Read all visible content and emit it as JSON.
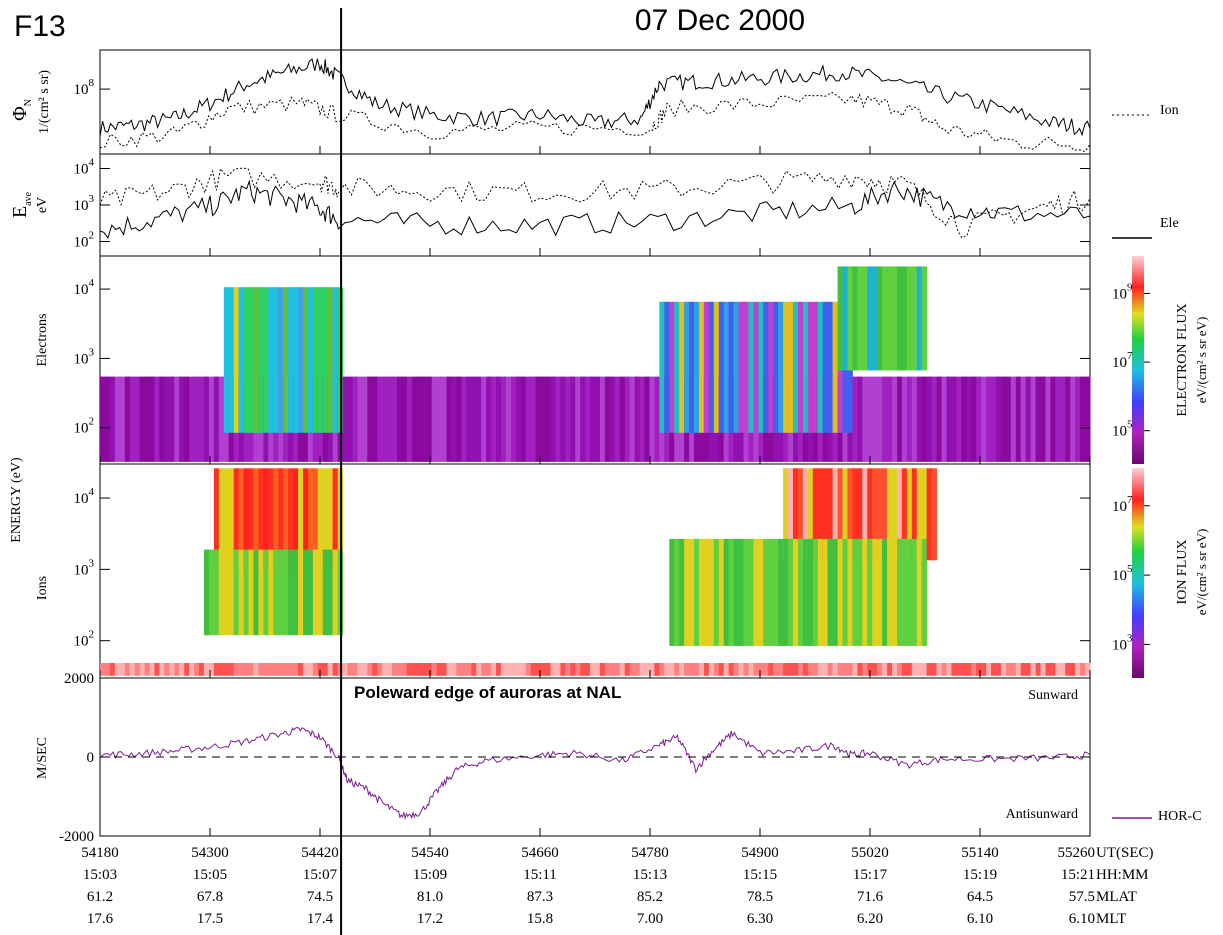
{
  "header": {
    "satellite": "F13",
    "date": "07 Dec 2000"
  },
  "legend": {
    "ion": "Ion",
    "ele": "Ele",
    "hor": "HOR-C"
  },
  "colors": {
    "velocity": "#7a1f8f",
    "line": "#000000"
  },
  "chart_data": [
    {
      "type": "line",
      "panel": "number-flux",
      "ylabel_symbol": "Φ",
      "ylabel_sub": "N",
      "ylabel_units": "1/(cm² s sr)",
      "yticks": [
        {
          "label": "10",
          "exp": "8",
          "value": 100000000
        }
      ],
      "y_scale": "log",
      "ylim": [
        10000000,
        400000000
      ],
      "series": [
        {
          "name": "Ele",
          "style": "solid",
          "points": [
            [
              54180,
              25000000.0
            ],
            [
              54220,
              28000000.0
            ],
            [
              54260,
              35000000.0
            ],
            [
              54300,
              60000000.0
            ],
            [
              54340,
              120000000.0
            ],
            [
              54380,
              180000000.0
            ],
            [
              54420,
              250000000.0
            ],
            [
              54440,
              150000000.0
            ],
            [
              54480,
              60000000.0
            ],
            [
              54540,
              40000000.0
            ],
            [
              54600,
              35000000.0
            ],
            [
              54660,
              40000000.0
            ],
            [
              54720,
              30000000.0
            ],
            [
              54770,
              35000000.0
            ],
            [
              54790,
              120000000.0
            ],
            [
              54830,
              130000000.0
            ],
            [
              54880,
              140000000.0
            ],
            [
              54940,
              160000000.0
            ],
            [
              54990,
              180000000.0
            ],
            [
              55040,
              140000000.0
            ],
            [
              55100,
              80000000.0
            ],
            [
              55160,
              50000000.0
            ],
            [
              55220,
              30000000.0
            ],
            [
              55260,
              25000000.0
            ]
          ]
        },
        {
          "name": "Ion",
          "style": "dotted",
          "points": [
            [
              54180,
              15000000.0
            ],
            [
              54260,
              20000000.0
            ],
            [
              54320,
              50000000.0
            ],
            [
              54400,
              60000000.0
            ],
            [
              54440,
              40000000.0
            ],
            [
              54540,
              22000000.0
            ],
            [
              54660,
              25000000.0
            ],
            [
              54780,
              25000000.0
            ],
            [
              54800,
              50000000.0
            ],
            [
              54900,
              60000000.0
            ],
            [
              55000,
              70000000.0
            ],
            [
              55060,
              50000000.0
            ],
            [
              55100,
              25000000.0
            ],
            [
              55180,
              15000000.0
            ],
            [
              55260,
              14000000.0
            ]
          ]
        }
      ]
    },
    {
      "type": "line",
      "panel": "average-energy",
      "ylabel_symbol": "E",
      "ylabel_sub": "ave",
      "ylabel_units": "eV",
      "yticks": [
        {
          "label": "10",
          "exp": "4",
          "value": 10000
        },
        {
          "label": "10",
          "exp": "3",
          "value": 1000
        },
        {
          "label": "10",
          "exp": "2",
          "value": 100
        }
      ],
      "y_scale": "log",
      "ylim": [
        40,
        25000
      ],
      "series": [
        {
          "name": "Ele",
          "style": "solid",
          "points": [
            [
              54180,
              200
            ],
            [
              54240,
              400
            ],
            [
              54300,
              900
            ],
            [
              54340,
              2500
            ],
            [
              54380,
              1500
            ],
            [
              54420,
              800
            ],
            [
              54440,
              400
            ],
            [
              54540,
              300
            ],
            [
              54660,
              280
            ],
            [
              54780,
              350
            ],
            [
              54900,
              600
            ],
            [
              55000,
              900
            ],
            [
              55050,
              3000
            ],
            [
              55100,
              1000
            ],
            [
              55160,
              600
            ],
            [
              55260,
              500
            ]
          ]
        },
        {
          "name": "Ion",
          "style": "dotted",
          "points": [
            [
              54180,
              1200
            ],
            [
              54260,
              2500
            ],
            [
              54320,
              6000
            ],
            [
              54420,
              4500
            ],
            [
              54440,
              3000
            ],
            [
              54540,
              2500
            ],
            [
              54660,
              2200
            ],
            [
              54780,
              2500
            ],
            [
              54900,
              4000
            ],
            [
              55000,
              6000
            ],
            [
              55060,
              3500
            ],
            [
              55120,
              250
            ],
            [
              55200,
              800
            ],
            [
              55260,
              1500
            ]
          ]
        }
      ]
    },
    {
      "type": "heatmap",
      "panel": "electron-spectrogram",
      "ylabel": "Electrons",
      "yticks": [
        {
          "label": "10",
          "exp": "4",
          "value": 10000
        },
        {
          "label": "10",
          "exp": "3",
          "value": 1000
        },
        {
          "label": "10",
          "exp": "2",
          "value": 100
        }
      ],
      "y_scale": "log",
      "ylim": [
        30,
        30000
      ],
      "colorbar": {
        "label": "ELECTRON FLUX",
        "units": "eV/(cm² s sr eV)",
        "ticks": [
          {
            "label": "10",
            "exp": "9"
          },
          {
            "label": "10",
            "exp": "7"
          },
          {
            "label": "10",
            "exp": "5"
          }
        ]
      }
    },
    {
      "type": "heatmap",
      "panel": "ion-spectrogram",
      "ylabel": "Ions",
      "yticks": [
        {
          "label": "10",
          "exp": "4",
          "value": 10000
        },
        {
          "label": "10",
          "exp": "3",
          "value": 1000
        },
        {
          "label": "10",
          "exp": "2",
          "value": 100
        }
      ],
      "y_scale": "log",
      "ylim": [
        30,
        30000
      ],
      "colorbar": {
        "label": "ION FLUX",
        "units": "eV/(cm² s sr eV)",
        "ticks": [
          {
            "label": "10",
            "exp": "7"
          },
          {
            "label": "10",
            "exp": "5"
          },
          {
            "label": "10",
            "exp": "3"
          }
        ]
      }
    },
    {
      "type": "line",
      "panel": "velocity",
      "ylabel": "M/SEC",
      "yticks": [
        {
          "label": "2000",
          "value": 2000
        },
        {
          "label": "0",
          "value": 0
        },
        {
          "label": "-2000",
          "value": -2000
        }
      ],
      "ylim": [
        -2000,
        2000
      ],
      "annotations": {
        "title": "Poleward edge of auroras at NAL",
        "upper": "Sunward",
        "lower": "Antisunward"
      },
      "series": [
        {
          "name": "HOR-C",
          "points": [
            [
              54180,
              50
            ],
            [
              54220,
              80
            ],
            [
              54260,
              150
            ],
            [
              54300,
              250
            ],
            [
              54340,
              400
            ],
            [
              54380,
              600
            ],
            [
              54400,
              700
            ],
            [
              54420,
              500
            ],
            [
              54440,
              0
            ],
            [
              54450,
              -600
            ],
            [
              54470,
              -800
            ],
            [
              54490,
              -1200
            ],
            [
              54510,
              -1500
            ],
            [
              54530,
              -1400
            ],
            [
              54550,
              -800
            ],
            [
              54570,
              -300
            ],
            [
              54600,
              -100
            ],
            [
              54660,
              50
            ],
            [
              54700,
              100
            ],
            [
              54750,
              -100
            ],
            [
              54790,
              300
            ],
            [
              54810,
              500
            ],
            [
              54830,
              -300
            ],
            [
              54850,
              200
            ],
            [
              54870,
              600
            ],
            [
              54900,
              100
            ],
            [
              54940,
              150
            ],
            [
              54980,
              300
            ],
            [
              55000,
              50
            ],
            [
              55020,
              100
            ],
            [
              55060,
              -200
            ],
            [
              55100,
              -50
            ],
            [
              55160,
              -50
            ],
            [
              55220,
              -20
            ],
            [
              55260,
              50
            ]
          ]
        }
      ]
    },
    {
      "type": "table",
      "panel": "time-axis",
      "x_values": [
        54180,
        54300,
        54420,
        54540,
        54660,
        54780,
        54900,
        55020,
        55140,
        55260
      ],
      "xlim": [
        54180,
        55260
      ],
      "event_x": 54443,
      "rows": [
        {
          "unit": "UT(SEC)",
          "values": [
            "54180",
            "54300",
            "54420",
            "54540",
            "54660",
            "54780",
            "54900",
            "55020",
            "55140",
            "55260"
          ]
        },
        {
          "unit": "HH:MM",
          "values": [
            "15:03",
            "15:05",
            "15:07",
            "15:09",
            "15:11",
            "15:13",
            "15:15",
            "15:17",
            "15:19",
            "15:21"
          ]
        },
        {
          "unit": "MLAT",
          "values": [
            "61.2",
            "67.8",
            "74.5",
            "81.0",
            "87.3",
            "85.2",
            "78.5",
            "71.6",
            "64.5",
            "57.5"
          ]
        },
        {
          "unit": "MLT",
          "values": [
            "17.6",
            "17.5",
            "17.4",
            "17.2",
            "15.8",
            "7.00",
            "6.30",
            "6.20",
            "6.10",
            "6.10"
          ]
        }
      ]
    }
  ],
  "shared_ylabel": "ENERGY (eV)"
}
